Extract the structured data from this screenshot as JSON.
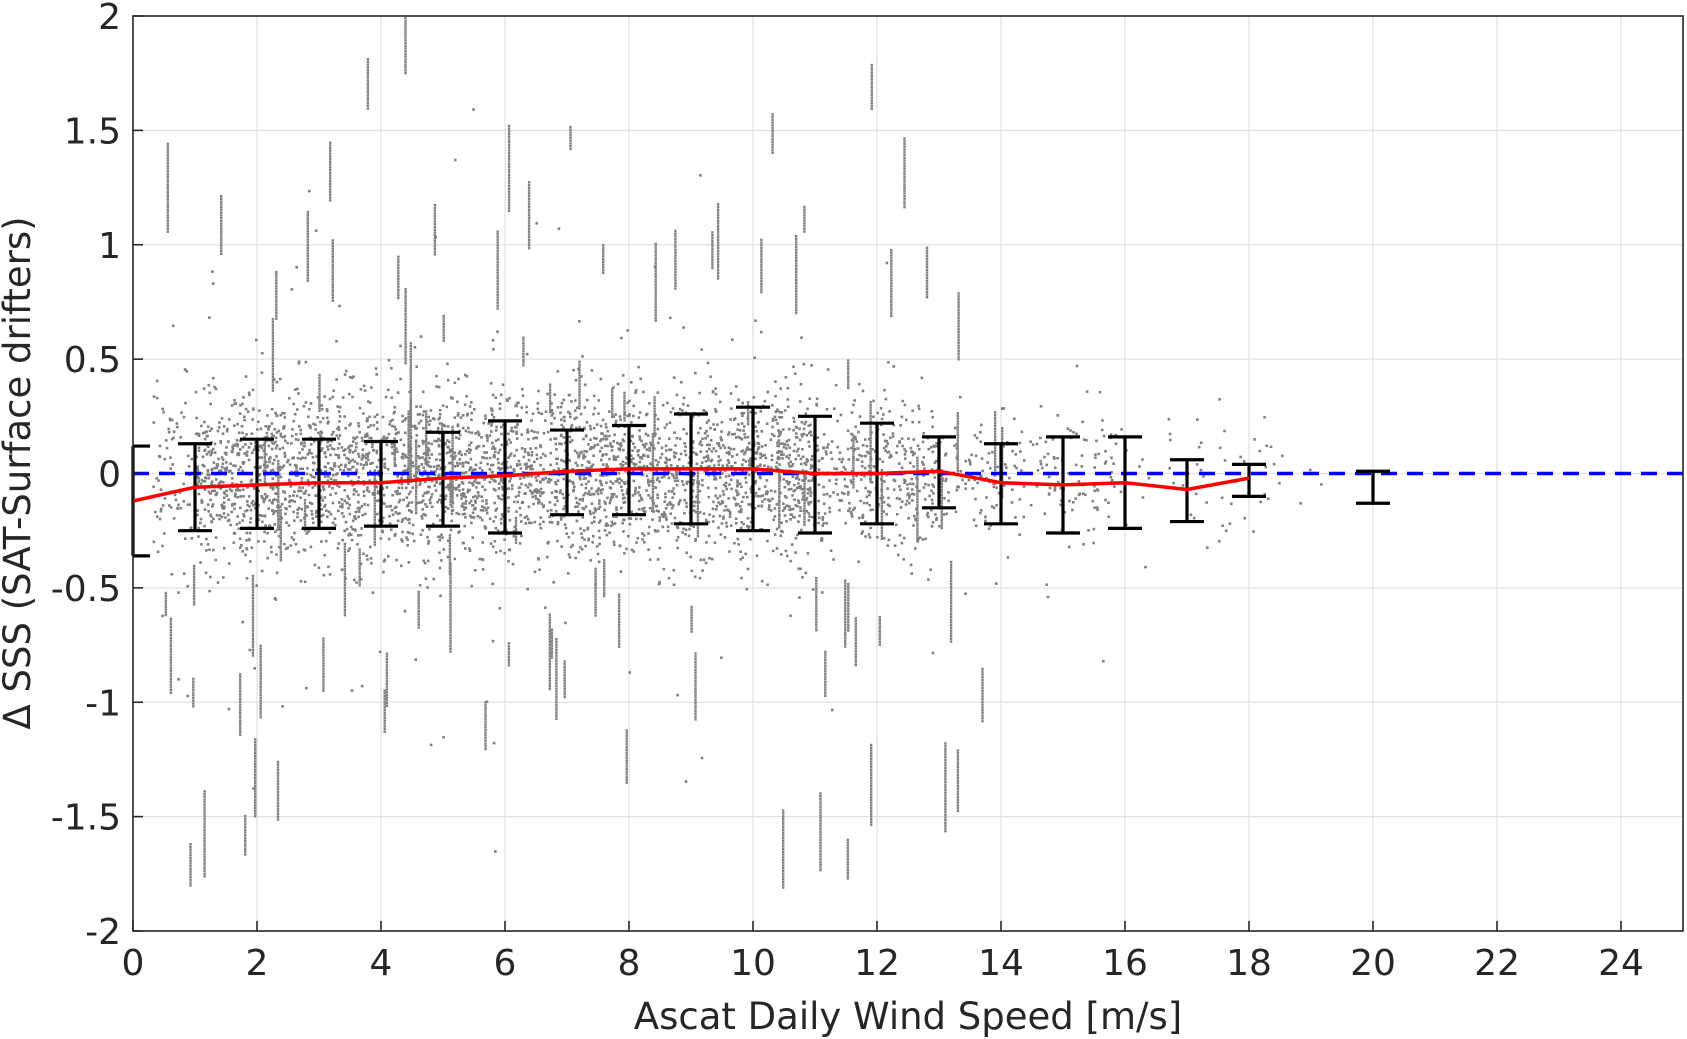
{
  "chart_data": {
    "type": "scatter",
    "xlabel": "Ascat Daily Wind Speed [m/s]",
    "ylabel": "Δ SSS (SAT-Surface drifters)",
    "xlim": [
      0,
      25
    ],
    "ylim": [
      -2,
      2
    ],
    "xticks": [
      0,
      2,
      4,
      6,
      8,
      10,
      12,
      14,
      16,
      18,
      20,
      22,
      24
    ],
    "yticks": [
      -2,
      -1.5,
      -1,
      -0.5,
      0,
      0.5,
      1,
      1.5,
      2
    ],
    "xtick_labels": [
      "0",
      "2",
      "4",
      "6",
      "8",
      "10",
      "12",
      "14",
      "16",
      "18",
      "20",
      "22",
      "24"
    ],
    "ytick_labels": [
      "-2",
      "-1.5",
      "-1",
      "-0.5",
      "0",
      "0.5",
      "1",
      "1.5",
      "2"
    ],
    "grid": true,
    "colors": {
      "scatter": "#808080",
      "mean_line": "#ff0000",
      "zero_line": "#0000ff",
      "error_bars": "#000000",
      "grid": "#e0e0e0",
      "axes": "#262626"
    },
    "scatter_cloud": {
      "description_x_range": [
        0.3,
        20.5
      ],
      "center_y": 0,
      "spread_sd": 0.18
    },
    "mean_line": {
      "x": [
        0,
        1,
        2,
        3,
        4,
        5,
        6,
        7,
        8,
        9,
        10,
        11,
        12,
        13,
        14,
        15,
        16,
        17,
        18
      ],
      "y": [
        -0.12,
        -0.06,
        -0.05,
        -0.04,
        -0.04,
        -0.02,
        -0.01,
        0.01,
        0.02,
        0.02,
        0.02,
        0.0,
        0.0,
        0.01,
        -0.04,
        -0.05,
        -0.04,
        -0.07,
        -0.02
      ]
    },
    "zero_line": {
      "y": 0,
      "style": "dashed"
    },
    "error_bars": {
      "x": [
        0,
        1,
        2,
        3,
        4,
        5,
        6,
        7,
        8,
        9,
        10,
        11,
        12,
        13,
        14,
        15,
        16,
        17,
        18,
        20
      ],
      "lower": [
        -0.36,
        -0.25,
        -0.24,
        -0.24,
        -0.23,
        -0.23,
        -0.26,
        -0.18,
        -0.18,
        -0.22,
        -0.25,
        -0.26,
        -0.22,
        -0.15,
        -0.22,
        -0.26,
        -0.24,
        -0.21,
        -0.1,
        -0.13
      ],
      "upper": [
        0.12,
        0.13,
        0.15,
        0.15,
        0.14,
        0.18,
        0.23,
        0.19,
        0.21,
        0.26,
        0.29,
        0.25,
        0.22,
        0.16,
        0.13,
        0.16,
        0.16,
        0.06,
        0.04,
        0.01
      ]
    }
  }
}
